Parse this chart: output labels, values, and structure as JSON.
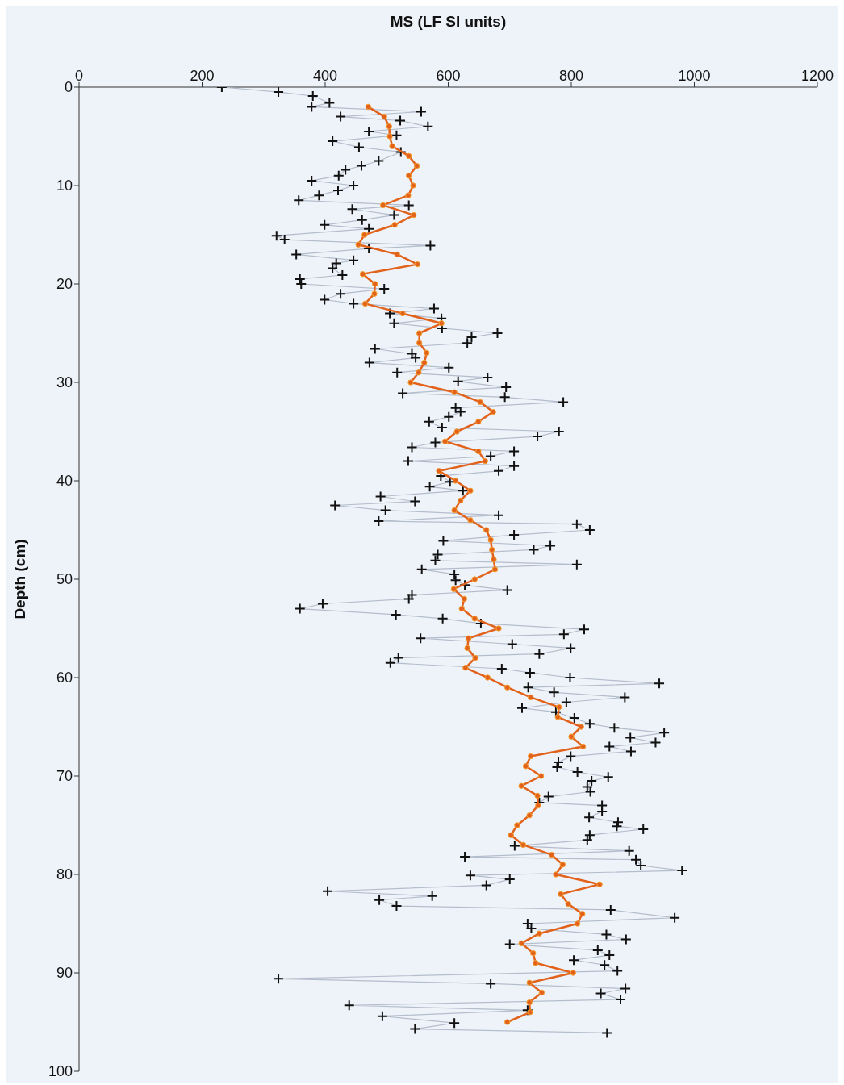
{
  "chart_data": {
    "type": "line",
    "xlabel": "MS (LF SI units)",
    "ylabel": "Depth (cm)",
    "xlim": [
      0,
      1200
    ],
    "xticks": [
      0,
      200,
      400,
      600,
      800,
      1000,
      1200
    ],
    "ylim": [
      100,
      0
    ],
    "yticks": [
      0,
      10,
      20,
      30,
      40,
      50,
      60,
      70,
      80,
      90,
      100
    ],
    "grid": false,
    "series": [
      {
        "marker": "cross",
        "color": "#111111",
        "x": [
          232,
          324,
          380,
          407,
          378,
          556,
          425,
          522,
          567,
          471,
          516,
          412,
          455,
          523,
          487,
          459,
          433,
          422,
          378,
          446,
          421,
          390,
          357,
          536,
          444,
          512,
          460,
          399,
          471,
          321,
          334,
          571,
          471,
          353,
          446,
          418,
          412,
          428,
          359,
          361,
          496,
          425,
          399,
          446,
          577,
          505,
          589,
          512,
          590,
          680,
          638,
          631,
          481,
          541,
          547,
          472,
          601,
          517,
          664,
          616,
          694,
          526,
          692,
          787,
          612,
          620,
          601,
          569,
          590,
          780,
          745,
          579,
          541,
          707,
          669,
          535,
          707,
          682,
          588,
          603,
          570,
          624,
          490,
          546,
          416,
          498,
          682,
          487,
          809,
          830,
          707,
          592,
          766,
          739,
          583,
          579,
          809,
          557,
          610,
          612,
          627,
          696,
          541,
          536,
          396,
          359,
          515,
          591,
          653,
          821,
          788,
          555,
          704,
          799,
          748,
          519,
          506,
          687,
          733,
          798,
          943,
          730,
          772,
          887,
          792,
          720,
          775,
          805,
          830,
          870,
          951,
          896,
          937,
          862,
          897,
          799,
          779,
          777,
          810,
          860,
          833,
          826,
          831,
          763,
          748,
          850,
          850,
          829,
          876,
          874,
          917,
          830,
          826,
          708,
          894,
          627,
          905,
          913,
          980,
          636,
          700,
          662,
          404,
          574,
          488,
          516,
          864,
          968,
          729,
          735,
          857,
          889,
          700,
          843,
          862,
          804,
          854,
          875,
          324,
          669,
          888,
          848,
          880,
          439,
          729,
          493,
          610,
          546,
          858
        ],
        "values": [
          0,
          0.5,
          0.9,
          1.6,
          2.0,
          2.5,
          3.0,
          3.4,
          4.0,
          4.5,
          4.9,
          5.5,
          6.1,
          6.6,
          7.5,
          8.0,
          8.4,
          9.0,
          9.5,
          10.0,
          10.5,
          11.0,
          11.5,
          12.0,
          12.4,
          13.0,
          13.5,
          14.0,
          14.4,
          15.1,
          15.5,
          16.1,
          16.4,
          17.0,
          17.6,
          17.9,
          18.4,
          19.1,
          19.5,
          20.0,
          20.5,
          21.0,
          21.6,
          22.0,
          22.5,
          23.0,
          23.5,
          24.0,
          24.5,
          25.0,
          25.4,
          26.0,
          26.6,
          27.1,
          27.5,
          28.0,
          28.5,
          29.0,
          29.5,
          29.9,
          30.5,
          31.1,
          31.5,
          32.0,
          32.6,
          33.0,
          33.5,
          34.0,
          34.6,
          35.0,
          35.5,
          36.1,
          36.6,
          37.0,
          37.5,
          38.0,
          38.5,
          39.0,
          39.5,
          40.1,
          40.6,
          41.0,
          41.6,
          42.1,
          42.5,
          43.0,
          43.5,
          44.1,
          44.4,
          45.0,
          45.5,
          46.1,
          46.6,
          47.0,
          47.5,
          48.1,
          48.5,
          49.0,
          49.5,
          50.1,
          50.6,
          51.1,
          51.6,
          52.0,
          52.5,
          53.0,
          53.6,
          54.0,
          54.5,
          55.1,
          55.6,
          56.0,
          56.6,
          57.0,
          57.6,
          58.0,
          58.5,
          59.1,
          59.5,
          60.0,
          60.6,
          61.0,
          61.5,
          62.0,
          62.5,
          63.1,
          63.5,
          64.1,
          64.7,
          65.1,
          65.6,
          66.1,
          66.6,
          67.0,
          67.5,
          68.0,
          68.6,
          69.1,
          69.6,
          70.1,
          70.5,
          71.1,
          71.6,
          72.1,
          72.7,
          73.0,
          73.6,
          74.2,
          74.7,
          75.1,
          75.4,
          76.0,
          76.5,
          77.1,
          77.6,
          78.2,
          78.5,
          79.1,
          79.6,
          80.1,
          80.5,
          81.1,
          81.7,
          82.2,
          82.6,
          83.2,
          83.6,
          84.4,
          85.0,
          85.5,
          86.1,
          86.6,
          87.1,
          87.7,
          88.2,
          88.7,
          89.2,
          89.8,
          90.6,
          91.1,
          91.6,
          92.1,
          92.7,
          93.3,
          93.8,
          94.4,
          95.1,
          95.7,
          96.1
        ]
      },
      {
        "marker": "circle",
        "color": "#e2621c",
        "x": [
          470,
          496,
          504,
          505,
          509,
          536,
          549,
          536,
          543,
          535,
          494,
          544,
          513,
          464,
          454,
          517,
          550,
          461,
          481,
          480,
          465,
          526,
          589,
          553,
          553,
          565,
          561,
          552,
          539,
          610,
          652,
          673,
          649,
          614,
          595,
          649,
          660,
          585,
          612,
          636,
          620,
          610,
          636,
          662,
          669,
          671,
          674,
          676,
          643,
          609,
          626,
          622,
          643,
          682,
          633,
          631,
          644,
          628,
          664,
          696,
          734,
          780,
          778,
          816,
          800,
          819,
          734,
          726,
          751,
          719,
          745,
          746,
          732,
          712,
          702,
          722,
          768,
          786,
          775,
          846,
          783,
          795,
          818,
          810,
          748,
          719,
          738,
          742,
          803,
          732,
          752,
          732,
          733,
          696
        ],
        "values": [
          2,
          3,
          4,
          5,
          6,
          7,
          8,
          9,
          10,
          11,
          12,
          13,
          14,
          15,
          16,
          17,
          18,
          19,
          20,
          21,
          22,
          23,
          24,
          25,
          26,
          27,
          28,
          29,
          30,
          31,
          32,
          33,
          34,
          35,
          36,
          37,
          38,
          39,
          40,
          41,
          42,
          43,
          44,
          45,
          46,
          47,
          48,
          49,
          50,
          51,
          52,
          53,
          54,
          55,
          56,
          57,
          58,
          59,
          60,
          61,
          62,
          63,
          64,
          65,
          66,
          67,
          68,
          69,
          70,
          71,
          72,
          73,
          74,
          75,
          76,
          77,
          78,
          79,
          80,
          81,
          82,
          83,
          84,
          85,
          86,
          87,
          88,
          89,
          90,
          91,
          92,
          93,
          94,
          95
        ]
      }
    ]
  }
}
